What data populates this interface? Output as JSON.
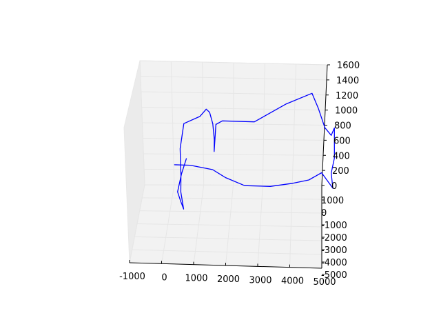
{
  "chart_data": {
    "type": "line",
    "projection": "3d",
    "grid": true,
    "title": "",
    "xlabel": "",
    "ylabel": "",
    "zlabel": "",
    "line_color": "#0000ff",
    "pane_color": "#f2f2f2",
    "grid_color": "#e6e6e6",
    "xlim": [
      -1000,
      5000
    ],
    "ylim": [
      -5000,
      1000
    ],
    "zlim": [
      0,
      1600
    ],
    "x_ticks": [
      "-1000",
      "0",
      "1000",
      "2000",
      "3000",
      "4000",
      "5000"
    ],
    "y_ticks": [
      "1000",
      "0",
      "-1000",
      "-2000",
      "-3000",
      "-4000",
      "-5000"
    ],
    "z_ticks": [
      "0",
      "200",
      "400",
      "600",
      "800",
      "1000",
      "1200",
      "1400",
      "1600"
    ],
    "series": [
      {
        "points": [
          {
            "x": 500,
            "y": -1500,
            "z": 800
          },
          {
            "x": 350,
            "y": -1550,
            "z": 600
          },
          {
            "x": 200,
            "y": -1200,
            "z": 300
          },
          {
            "x": 300,
            "y": -1300,
            "z": 200
          },
          {
            "x": 400,
            "y": -1350,
            "z": 100
          },
          {
            "x": 300,
            "y": -1200,
            "z": 300
          },
          {
            "x": 250,
            "y": -500,
            "z": 400
          },
          {
            "x": 200,
            "y": -200,
            "z": 700
          },
          {
            "x": 300,
            "y": 0,
            "z": 1000
          },
          {
            "x": 800,
            "y": 0,
            "z": 1100
          },
          {
            "x": 1000,
            "y": 0,
            "z": 1200
          },
          {
            "x": 1100,
            "y": 50,
            "z": 1150
          },
          {
            "x": 1200,
            "y": 50,
            "z": 1000
          },
          {
            "x": 1250,
            "y": 0,
            "z": 800
          },
          {
            "x": 1250,
            "y": -50,
            "z": 650
          },
          {
            "x": 1300,
            "y": 0,
            "z": 1000
          },
          {
            "x": 1500,
            "y": 0,
            "z": 1050
          },
          {
            "x": 2500,
            "y": 0,
            "z": 1050
          },
          {
            "x": 3500,
            "y": 0,
            "z": 1300
          },
          {
            "x": 4300,
            "y": 0,
            "z": 1450
          },
          {
            "x": 4500,
            "y": 0,
            "z": 1250
          },
          {
            "x": 4700,
            "y": 0,
            "z": 1000
          },
          {
            "x": 4900,
            "y": 0,
            "z": 900
          },
          {
            "x": 5000,
            "y": 0,
            "z": 1000
          },
          {
            "x": 5000,
            "y": 0,
            "z": 600
          },
          {
            "x": 4900,
            "y": 0,
            "z": 400
          },
          {
            "x": 4950,
            "y": 0,
            "z": 200
          },
          {
            "x": 4600,
            "y": 0,
            "z": 400
          },
          {
            "x": 4200,
            "y": 0,
            "z": 300
          },
          {
            "x": 3700,
            "y": 0,
            "z": 250
          },
          {
            "x": 3000,
            "y": 0,
            "z": 200
          },
          {
            "x": 2200,
            "y": 0,
            "z": 200
          },
          {
            "x": 1600,
            "y": 0,
            "z": 300
          },
          {
            "x": 1200,
            "y": 0,
            "z": 400
          },
          {
            "x": 500,
            "y": 0,
            "z": 450
          },
          {
            "x": 0,
            "y": 0,
            "z": 450
          }
        ]
      }
    ]
  }
}
